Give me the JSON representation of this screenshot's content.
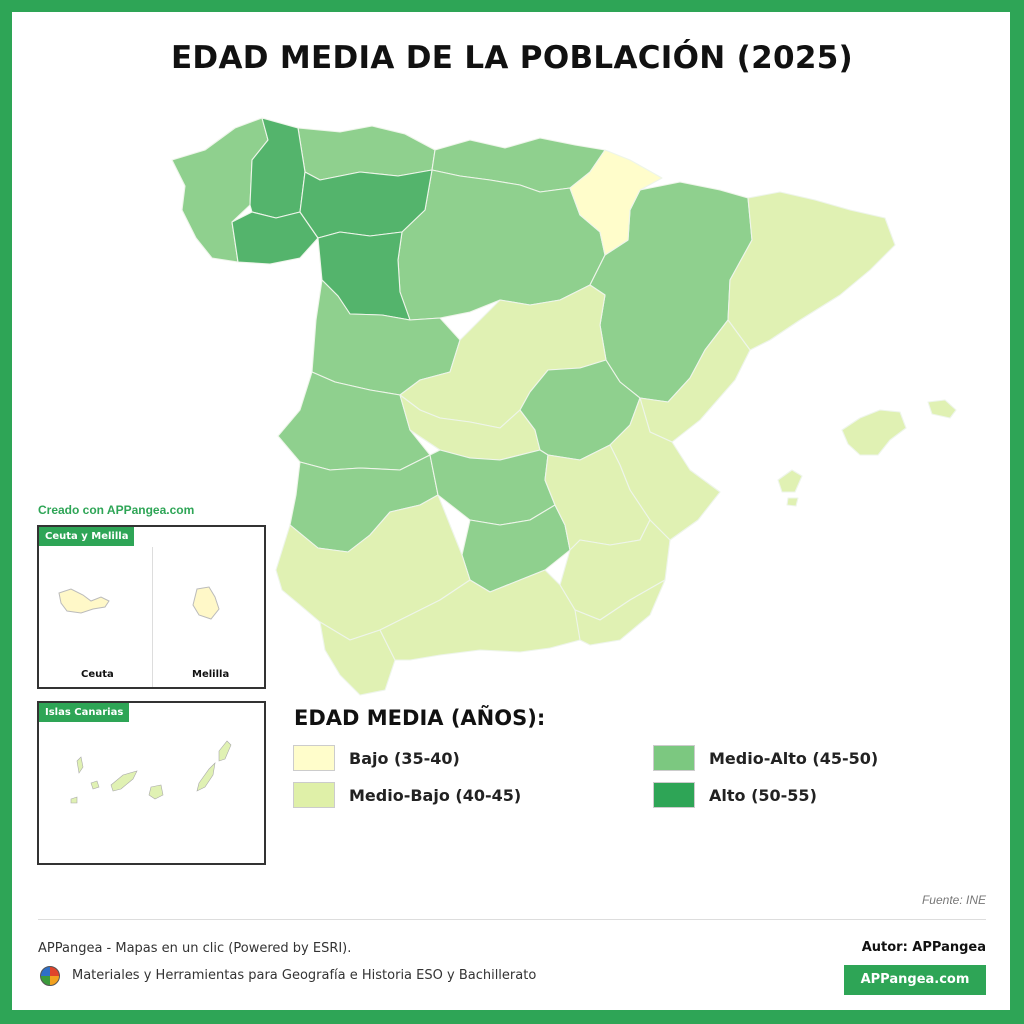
{
  "title": "EDAD MEDIA DE LA POBLACIÓN (2025)",
  "created_with": "Creado con APPangea.com",
  "insets": {
    "ceuta_melilla": {
      "tag": "Ceuta y Melilla",
      "ceuta": "Ceuta",
      "melilla": "Melilla"
    },
    "canarias": {
      "tag": "Islas Canarias"
    }
  },
  "legend": {
    "title": "EDAD MEDIA (AÑOS):",
    "items": [
      {
        "label": "Bajo (35-40)",
        "color": "#fffdcb"
      },
      {
        "label": "Medio-Bajo (40-45)",
        "color": "#dff0a8"
      },
      {
        "label": "Medio-Alto (45-50)",
        "color": "#7cc880"
      },
      {
        "label": "Alto (50-55)",
        "color": "#2ea556"
      }
    ]
  },
  "classes": {
    "bajo": "#fffdcb",
    "medio_bajo": "#e0f1b3",
    "medio_alto": "#8fd08e",
    "alto": "#54b46c"
  },
  "source": "Fuente: INE",
  "footer": {
    "left": "APPangea - Mapas en un clic (Powered by ESRI).",
    "sub": "Materiales y Herramientas para Geografía e Historia ESO y Bachillerato",
    "author": "Autor: APPangea",
    "site": "APPangea.com"
  }
}
